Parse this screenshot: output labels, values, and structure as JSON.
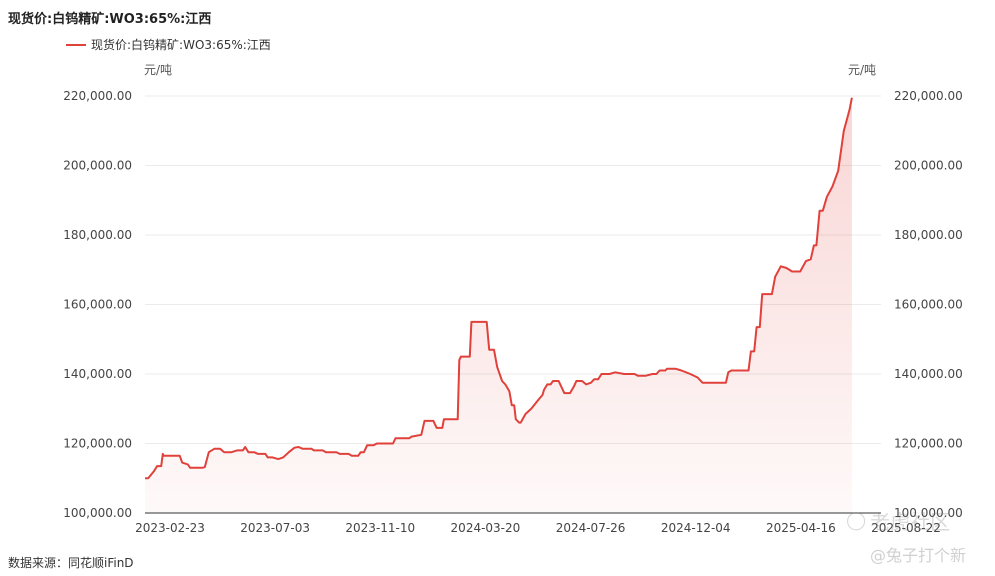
{
  "header": {
    "title": "现货价:白钨精矿:WO3:65%:江西",
    "legend_label": "现货价:白钨精矿:WO3:65%:江西",
    "unit_left": "元/吨",
    "unit_right": "元/吨"
  },
  "footer": {
    "source": "数据来源：同花顺iFinD",
    "watermark": "老虎社区",
    "watermark_sub": "@兔子打个新"
  },
  "colors": {
    "line": "#e0413b",
    "grid": "#ebebeb",
    "axis": "#333333"
  },
  "chart_data": {
    "type": "area",
    "y_ticks": [
      "100,000.00",
      "120,000.00",
      "140,000.00",
      "160,000.00",
      "180,000.00",
      "200,000.00",
      "220,000.00"
    ],
    "x_ticks": [
      "2023-02-23",
      "2023-07-03",
      "2023-11-10",
      "2024-03-20",
      "2024-07-26",
      "2024-12-04",
      "2025-04-16",
      "2025-08-22"
    ],
    "ylim": [
      100000,
      220000
    ],
    "xlim": [
      "2023-02-23",
      "2025-08-22"
    ],
    "grid": true,
    "series": [
      {
        "name": "现货价:白钨精矿:WO3:65%:江西",
        "points": [
          [
            "2023-02-23",
            110000
          ],
          [
            "2023-02-27",
            110000
          ],
          [
            "2023-03-06",
            112000
          ],
          [
            "2023-03-10",
            113500
          ],
          [
            "2023-03-15",
            113500
          ],
          [
            "2023-03-17",
            117000
          ],
          [
            "2023-03-18",
            116500
          ],
          [
            "2023-04-03",
            116500
          ],
          [
            "2023-04-07",
            116500
          ],
          [
            "2023-04-10",
            114500
          ],
          [
            "2023-04-17",
            114000
          ],
          [
            "2023-04-20",
            113000
          ],
          [
            "2023-05-05",
            113000
          ],
          [
            "2023-05-08",
            113200
          ],
          [
            "2023-05-13",
            117500
          ],
          [
            "2023-05-20",
            118500
          ],
          [
            "2023-05-27",
            118500
          ],
          [
            "2023-06-01",
            117500
          ],
          [
            "2023-06-10",
            117500
          ],
          [
            "2023-06-17",
            118000
          ],
          [
            "2023-06-24",
            118000
          ],
          [
            "2023-06-27",
            119000
          ],
          [
            "2023-07-01",
            117500
          ],
          [
            "2023-07-08",
            117500
          ],
          [
            "2023-07-13",
            117000
          ],
          [
            "2023-07-22",
            117000
          ],
          [
            "2023-07-25",
            116000
          ],
          [
            "2023-07-31",
            116000
          ],
          [
            "2023-08-07",
            115500
          ],
          [
            "2023-08-13",
            116000
          ],
          [
            "2023-08-20",
            117500
          ],
          [
            "2023-08-27",
            118800
          ],
          [
            "2023-09-01",
            119000
          ],
          [
            "2023-09-06",
            118500
          ],
          [
            "2023-09-17",
            118500
          ],
          [
            "2023-09-20",
            118000
          ],
          [
            "2023-10-01",
            118000
          ],
          [
            "2023-10-05",
            117500
          ],
          [
            "2023-10-18",
            117500
          ],
          [
            "2023-10-22",
            117000
          ],
          [
            "2023-11-02",
            117000
          ],
          [
            "2023-11-06",
            116500
          ],
          [
            "2023-11-14",
            116500
          ],
          [
            "2023-11-17",
            117500
          ],
          [
            "2023-11-21",
            117500
          ],
          [
            "2023-11-25",
            119500
          ],
          [
            "2023-12-03",
            119500
          ],
          [
            "2023-12-07",
            120000
          ],
          [
            "2023-12-27",
            120000
          ],
          [
            "2023-12-30",
            121500
          ],
          [
            "2024-01-16",
            121500
          ],
          [
            "2024-01-19",
            122000
          ],
          [
            "2024-01-31",
            122500
          ],
          [
            "2024-02-04",
            126500
          ],
          [
            "2024-02-15",
            126500
          ],
          [
            "2024-02-19",
            124500
          ],
          [
            "2024-02-26",
            124500
          ],
          [
            "2024-02-28",
            127000
          ],
          [
            "2024-03-16",
            127000
          ],
          [
            "2024-03-18",
            144000
          ],
          [
            "2024-03-20",
            145000
          ],
          [
            "2024-03-31",
            145000
          ],
          [
            "2024-04-02",
            155000
          ],
          [
            "2024-04-21",
            155000
          ],
          [
            "2024-04-24",
            147000
          ],
          [
            "2024-04-30",
            147000
          ],
          [
            "2024-05-04",
            142000
          ],
          [
            "2024-05-10",
            138000
          ],
          [
            "2024-05-14",
            137000
          ],
          [
            "2024-05-19",
            135000
          ],
          [
            "2024-05-22",
            131000
          ],
          [
            "2024-05-25",
            131000
          ],
          [
            "2024-05-27",
            127000
          ],
          [
            "2024-05-31",
            126000
          ],
          [
            "2024-06-02",
            126000
          ],
          [
            "2024-06-08",
            128500
          ],
          [
            "2024-06-15",
            130000
          ],
          [
            "2024-06-22",
            132000
          ],
          [
            "2024-06-29",
            134000
          ],
          [
            "2024-07-01",
            135500
          ],
          [
            "2024-07-05",
            137000
          ],
          [
            "2024-07-09",
            137000
          ],
          [
            "2024-07-12",
            138000
          ],
          [
            "2024-07-19",
            138000
          ],
          [
            "2024-07-23",
            136000
          ],
          [
            "2024-07-26",
            134500
          ],
          [
            "2024-08-02",
            134500
          ],
          [
            "2024-08-07",
            136500
          ],
          [
            "2024-08-10",
            138000
          ],
          [
            "2024-08-17",
            138000
          ],
          [
            "2024-08-22",
            137000
          ],
          [
            "2024-08-28",
            137500
          ],
          [
            "2024-09-01",
            138500
          ],
          [
            "2024-09-06",
            138500
          ],
          [
            "2024-09-10",
            140000
          ],
          [
            "2024-09-20",
            140000
          ],
          [
            "2024-09-27",
            140500
          ],
          [
            "2024-10-08",
            140000
          ],
          [
            "2024-10-21",
            140000
          ],
          [
            "2024-10-25",
            139500
          ],
          [
            "2024-11-04",
            139500
          ],
          [
            "2024-11-12",
            140000
          ],
          [
            "2024-11-17",
            140000
          ],
          [
            "2024-11-21",
            141000
          ],
          [
            "2024-11-28",
            141000
          ],
          [
            "2024-11-30",
            141500
          ],
          [
            "2024-12-04",
            141500
          ],
          [
            "2024-12-11",
            141500
          ],
          [
            "2024-12-18",
            141000
          ],
          [
            "2024-12-29",
            140000
          ],
          [
            "2025-01-07",
            139000
          ],
          [
            "2025-01-13",
            137500
          ],
          [
            "2025-02-11",
            137500
          ],
          [
            "2025-02-14",
            140500
          ],
          [
            "2025-02-18",
            141000
          ],
          [
            "2025-03-11",
            141000
          ],
          [
            "2025-03-14",
            146500
          ],
          [
            "2025-03-18",
            146500
          ],
          [
            "2025-03-21",
            153500
          ],
          [
            "2025-03-25",
            153500
          ],
          [
            "2025-03-28",
            163000
          ],
          [
            "2025-04-09",
            163000
          ],
          [
            "2025-04-13",
            168000
          ],
          [
            "2025-04-20",
            171000
          ],
          [
            "2025-04-27",
            170500
          ],
          [
            "2025-05-04",
            169500
          ],
          [
            "2025-05-14",
            169500
          ],
          [
            "2025-05-21",
            172500
          ],
          [
            "2025-05-27",
            173000
          ],
          [
            "2025-05-31",
            177000
          ],
          [
            "2025-06-03",
            177000
          ],
          [
            "2025-06-07",
            187000
          ],
          [
            "2025-06-11",
            187000
          ],
          [
            "2025-06-16",
            191000
          ],
          [
            "2025-06-23",
            194000
          ],
          [
            "2025-06-30",
            198500
          ],
          [
            "2025-07-07",
            210000
          ],
          [
            "2025-07-14",
            216000
          ],
          [
            "2025-07-17",
            219500
          ]
        ]
      }
    ]
  }
}
